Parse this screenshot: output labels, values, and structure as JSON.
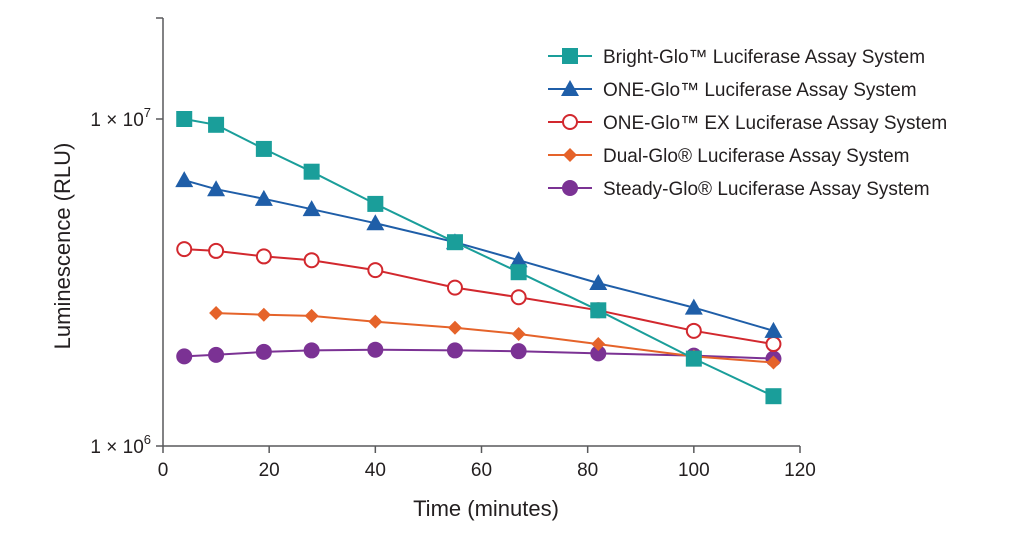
{
  "chart_data": {
    "type": "line",
    "xlabel": "Time (minutes)",
    "ylabel": "Luminescence (RLU)",
    "yscale": "log",
    "xlim": [
      0,
      120
    ],
    "ylim": [
      1000000,
      20000000
    ],
    "xticks": [
      {
        "value": 0,
        "label": "0"
      },
      {
        "value": 20,
        "label": "20"
      },
      {
        "value": 40,
        "label": "40"
      },
      {
        "value": 60,
        "label": "60"
      },
      {
        "value": 80,
        "label": "80"
      },
      {
        "value": 100,
        "label": "100"
      },
      {
        "value": 120,
        "label": "120"
      }
    ],
    "yticks": [
      {
        "value": 1000000,
        "mantissa": "1 × 10",
        "exponent": "6"
      },
      {
        "value": 10000000,
        "mantissa": "1 × 10",
        "exponent": "7"
      }
    ],
    "grid": false,
    "legend_position": "top-right",
    "series": [
      {
        "name": "Bright-Glo™ Luciferase Assay System",
        "color": "#1a9e9a",
        "marker": "square",
        "x": [
          4,
          10,
          19,
          28,
          40,
          55,
          67,
          82,
          100,
          115
        ],
        "y": [
          10000000,
          9600000,
          8100000,
          6900000,
          5500000,
          4200000,
          3400000,
          2600000,
          1850000,
          1420000
        ]
      },
      {
        "name": "ONE-Glo™ Luciferase Assay System",
        "color": "#1f5ea8",
        "marker": "triangle",
        "x": [
          4,
          10,
          19,
          28,
          40,
          55,
          67,
          82,
          100,
          115
        ],
        "y": [
          6500000,
          6100000,
          5700000,
          5300000,
          4800000,
          4200000,
          3700000,
          3150000,
          2650000,
          2250000
        ]
      },
      {
        "name": "ONE-Glo™ EX Luciferase Assay System",
        "color": "#d2282e",
        "marker": "open-circle",
        "x": [
          4,
          10,
          19,
          28,
          40,
          55,
          67,
          82,
          100,
          115
        ],
        "y": [
          4000000,
          3950000,
          3800000,
          3700000,
          3450000,
          3050000,
          2850000,
          2600000,
          2250000,
          2050000
        ]
      },
      {
        "name": "Dual-Glo® Luciferase Assay System",
        "color": "#e5632a",
        "marker": "diamond",
        "x": [
          10,
          19,
          28,
          40,
          55,
          67,
          82,
          100,
          115
        ],
        "y": [
          2550000,
          2520000,
          2500000,
          2400000,
          2300000,
          2200000,
          2050000,
          1880000,
          1800000
        ]
      },
      {
        "name": "Steady-Glo® Luciferase Assay System",
        "color": "#7b3294",
        "marker": "circle",
        "x": [
          4,
          10,
          19,
          28,
          40,
          55,
          67,
          82,
          100,
          115
        ],
        "y": [
          1880000,
          1900000,
          1940000,
          1960000,
          1970000,
          1960000,
          1950000,
          1920000,
          1890000,
          1850000
        ]
      }
    ]
  }
}
